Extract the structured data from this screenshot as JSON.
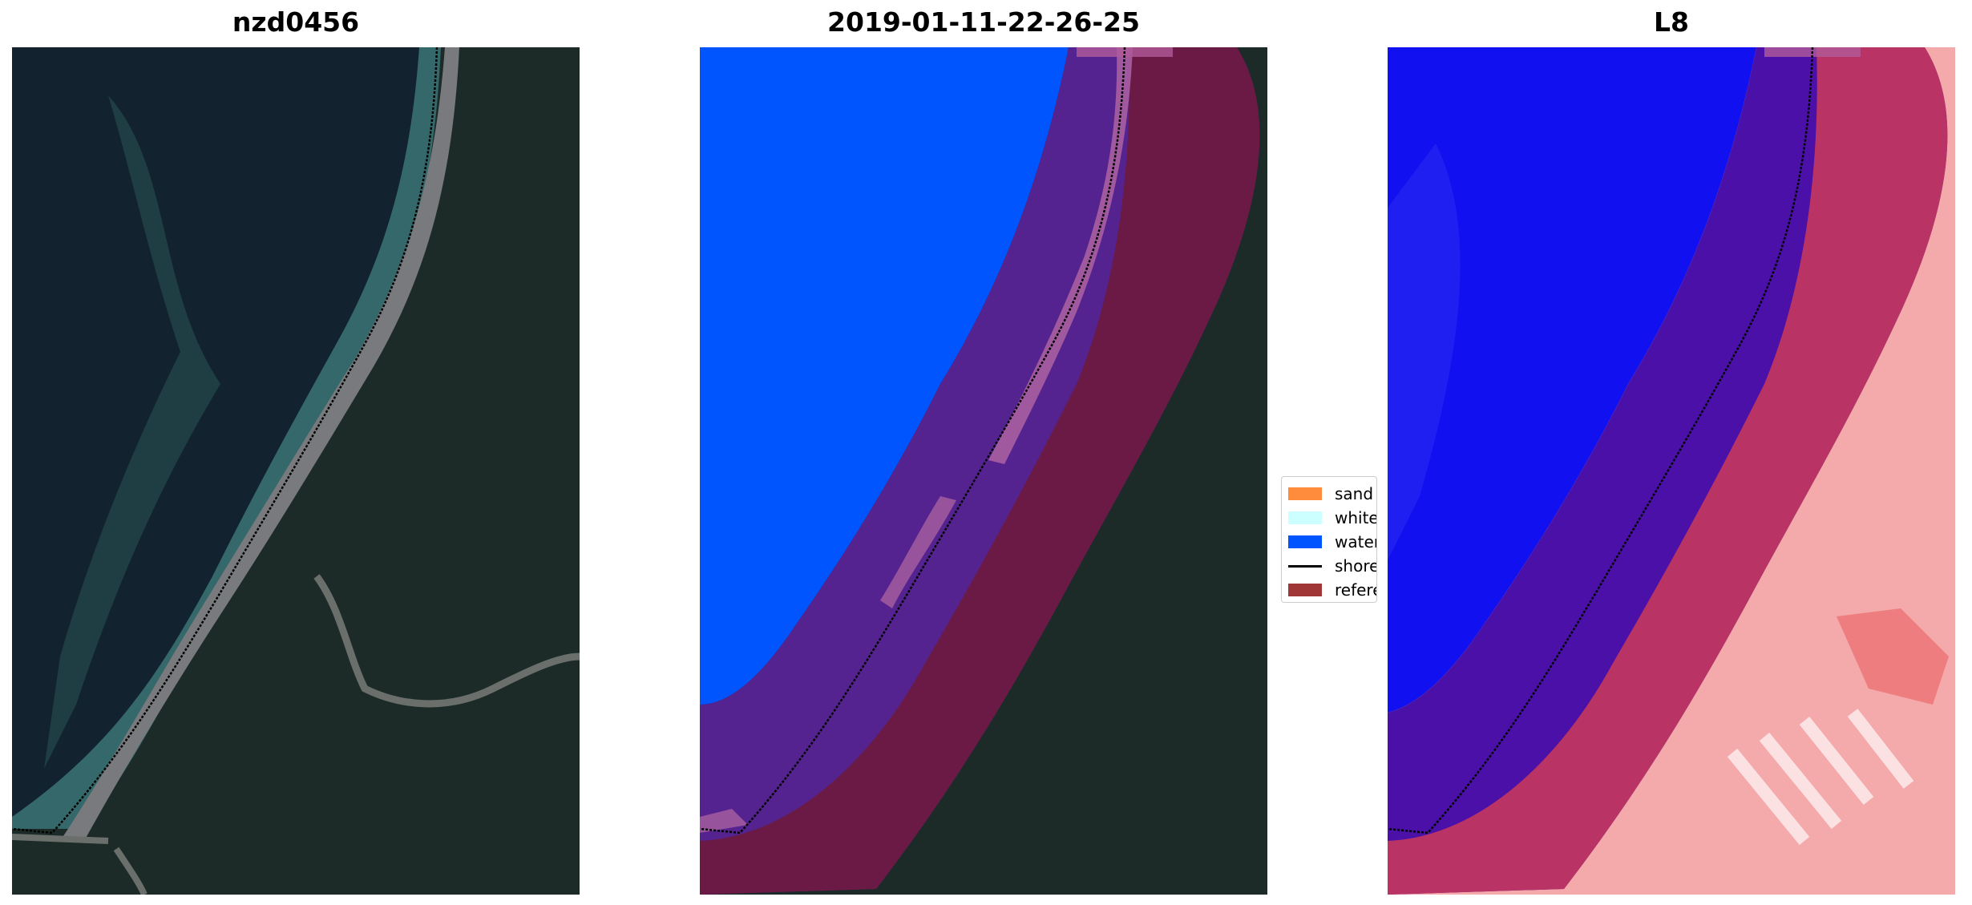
{
  "panels": [
    {
      "title": "nzd0456",
      "kind": "rgb"
    },
    {
      "title": "2019-01-11-22-26-25",
      "kind": "classified"
    },
    {
      "title": "L8",
      "kind": "index"
    }
  ],
  "legend": {
    "items": [
      {
        "label": "sand",
        "color": "#ff8c3c",
        "kind": "patch"
      },
      {
        "label": "whitewater",
        "color": "#ccffff",
        "kind": "patch"
      },
      {
        "label": "water",
        "color": "#0055ff",
        "kind": "patch"
      },
      {
        "label": "shoreline",
        "color": "#000000",
        "kind": "line"
      },
      {
        "label": "reference shoreline buffer",
        "color": "#a03636",
        "kind": "patch"
      }
    ]
  },
  "colors": {
    "land": "#1c2b28",
    "water_dark": "#12222f",
    "surf": "#3f7a79",
    "road": "#787a7d",
    "water_class": "#0055ff",
    "buffer": "#8a1f4c",
    "index_water": "#1010f0",
    "index_land": "#f8c0c0"
  }
}
